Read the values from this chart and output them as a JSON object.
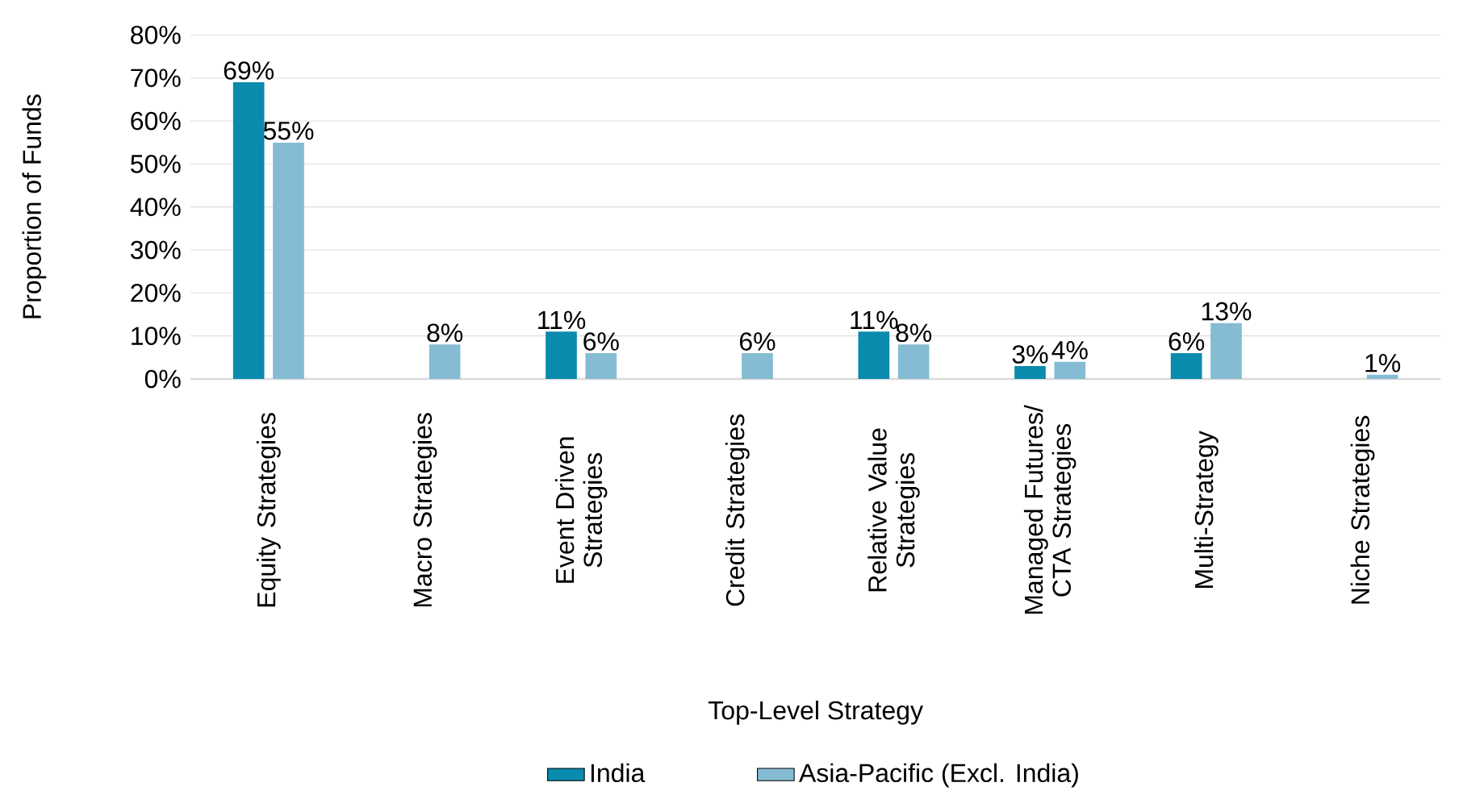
{
  "chart_data": {
    "type": "bar",
    "xlabel": "Top-Level Strategy",
    "ylabel": "Proportion of Funds",
    "categories": [
      "Equity Strategies",
      "Macro Strategies",
      "Event Driven Strategies",
      "Credit Strategies",
      "Relative Value Strategies",
      "Managed Futures/ CTA Strategies",
      "Multi-Strategy",
      "Niche Strategies"
    ],
    "series": [
      {
        "name": "India",
        "color": "#0a8aad",
        "values": [
          69,
          null,
          11,
          null,
          11,
          3,
          6,
          null
        ],
        "value_labels": [
          "69%",
          null,
          "11%",
          null,
          "11%",
          "3%",
          "6%",
          null
        ]
      },
      {
        "name": "Asia-Pacific (Excl. India)",
        "color": "#85bcd4",
        "values": [
          55,
          8,
          6,
          6,
          8,
          4,
          13,
          1
        ],
        "value_labels": [
          "55%",
          "8%",
          "6%",
          "6%",
          "8%",
          "4%",
          "13%",
          "1%"
        ]
      }
    ],
    "ylim": [
      0,
      80
    ],
    "yticks": [
      {
        "value": 0,
        "label": "0%"
      },
      {
        "value": 10,
        "label": "10%"
      },
      {
        "value": 20,
        "label": "20%"
      },
      {
        "value": 30,
        "label": "30%"
      },
      {
        "value": 40,
        "label": "40%"
      },
      {
        "value": 50,
        "label": "50%"
      },
      {
        "value": 60,
        "label": "60%"
      },
      {
        "value": 70,
        "label": "70%"
      },
      {
        "value": 80,
        "label": "80%"
      }
    ],
    "grid": "y",
    "legend": "bottom"
  }
}
